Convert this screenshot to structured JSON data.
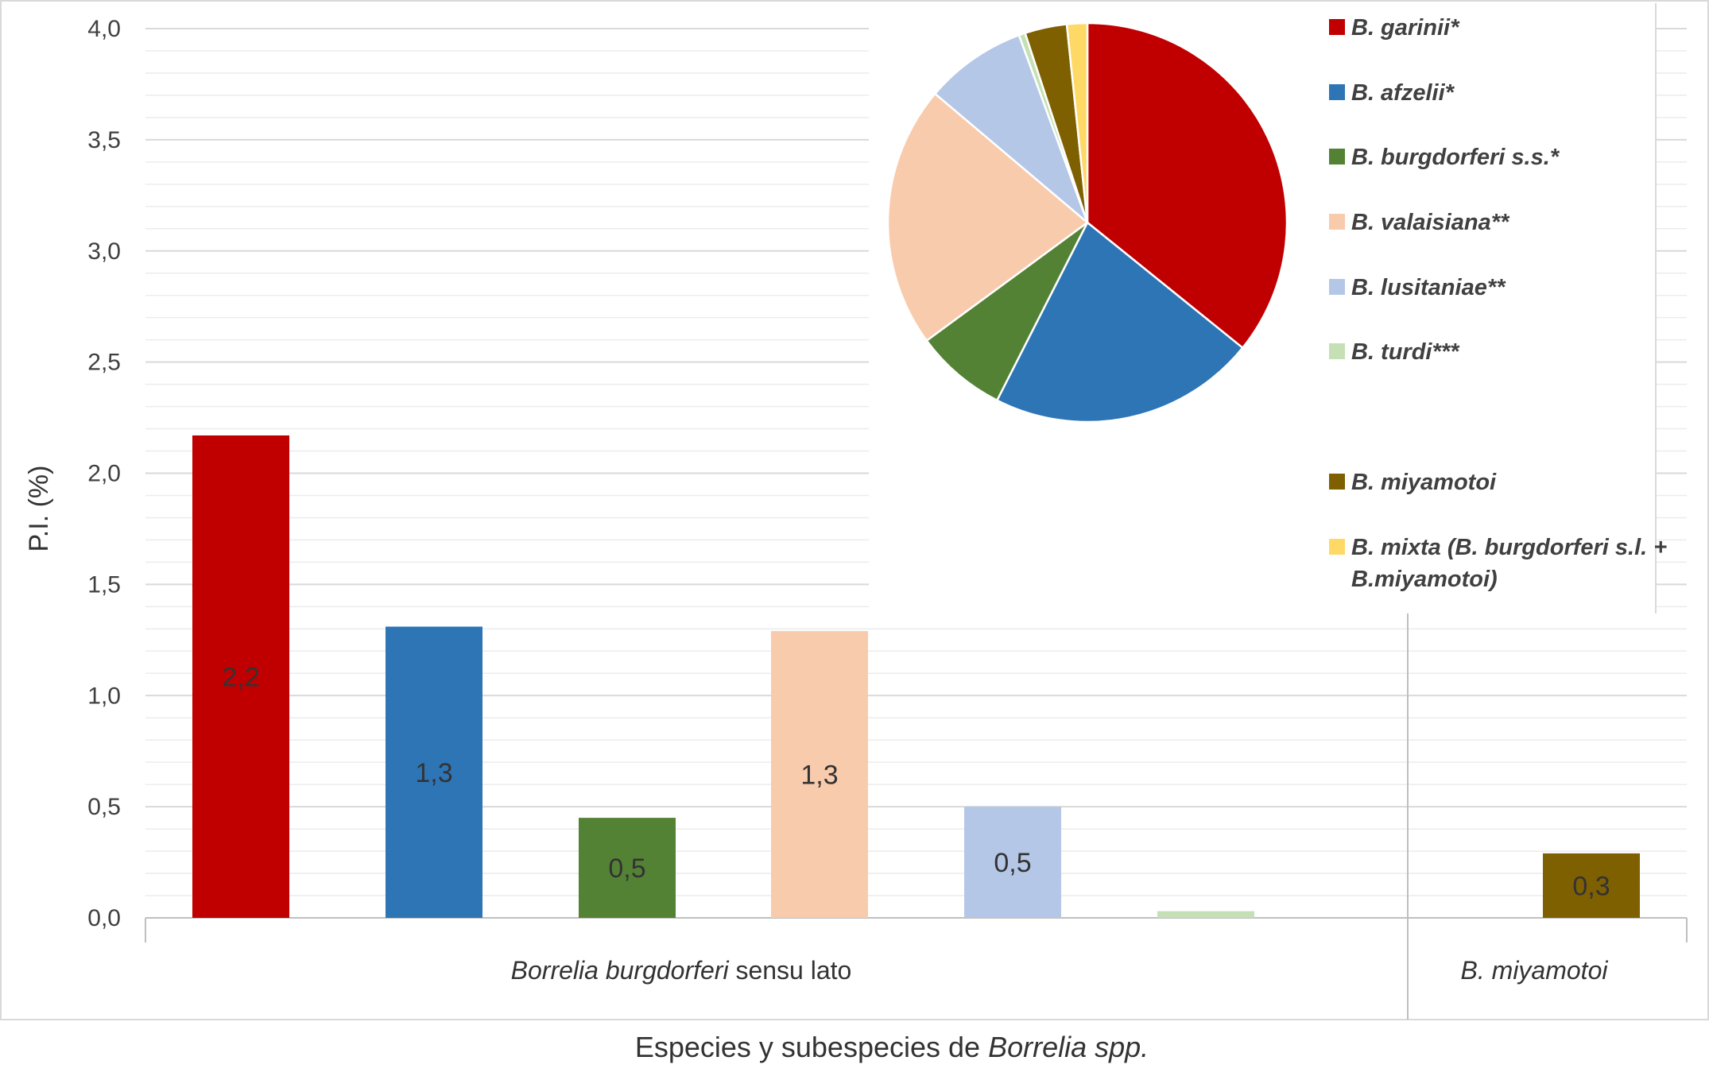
{
  "chart_data": [
    {
      "type": "bar",
      "ylabel": "P.I. (%)",
      "ylim": [
        0,
        4.0
      ],
      "ytick_step": 0.5,
      "yticks": [
        "0,0",
        "0,5",
        "1,0",
        "1,5",
        "2,0",
        "2,5",
        "3,0",
        "3,5",
        "4,0"
      ],
      "grid": true,
      "xlabel_parts": [
        "Especies y subespecies de ",
        "Borrelia spp."
      ],
      "groups": [
        {
          "label_italic": "Borrelia burgdorferi",
          "label_normal": " sensu lato"
        },
        {
          "label_italic": "B. miyamotoi",
          "label_normal": ""
        }
      ],
      "bars": [
        {
          "value": 2.17,
          "label": "2,2",
          "color": "#c00000",
          "group": 0
        },
        {
          "value": 1.31,
          "label": "1,3",
          "color": "#2e75b6",
          "group": 0
        },
        {
          "value": 0.45,
          "label": "0,5",
          "color": "#548235",
          "group": 0
        },
        {
          "value": 1.29,
          "label": "1,3",
          "color": "#f8cbad",
          "group": 0
        },
        {
          "value": 0.5,
          "label": "0,5",
          "color": "#b4c7e7",
          "group": 0
        },
        {
          "value": 0.03,
          "label": "",
          "color": "#c5e0b4",
          "group": 0
        },
        {
          "value": 0.29,
          "label": "0,3",
          "color": "#7f6000",
          "group": 1
        }
      ]
    },
    {
      "type": "pie",
      "slices": [
        {
          "name": "B. garinii*",
          "value": 34.7,
          "color": "#c00000"
        },
        {
          "name": "B. afzelii*",
          "value": 21.0,
          "color": "#2e75b6"
        },
        {
          "name": "B. burgdorferi s.s.*",
          "value": 7.2,
          "color": "#548235"
        },
        {
          "name": "B. valaisiana**",
          "value": 20.6,
          "color": "#f8cbad"
        },
        {
          "name": "B. lusitaniae**",
          "value": 8.0,
          "color": "#b4c7e7"
        },
        {
          "name": "B. turdi***",
          "value": 0.5,
          "color": "#c5e0b4"
        },
        {
          "name": "B. miyamotoi",
          "value": 3.3,
          "color": "#7f6000"
        },
        {
          "name": "B. mixta (B. burgdorferi s.l. + B.miyamotoi)",
          "value": 1.6,
          "color": "#ffd966"
        }
      ],
      "legend": [
        {
          "lines": [
            "B. garinii*"
          ],
          "color": "#c00000"
        },
        {
          "lines": [
            "B. afzelii*"
          ],
          "color": "#2e75b6"
        },
        {
          "lines": [
            "B. burgdorferi s.s.*"
          ],
          "color": "#548235"
        },
        {
          "lines": [
            "B. valaisiana**"
          ],
          "color": "#f8cbad"
        },
        {
          "lines": [
            "B. lusitaniae**"
          ],
          "color": "#b4c7e7"
        },
        {
          "lines": [
            "B. turdi***"
          ],
          "color": "#c5e0b4"
        },
        {
          "lines": [
            "B. miyamotoi"
          ],
          "color": "#7f6000"
        },
        {
          "lines": [
            "B. mixta (B. burgdorferi s.l. +",
            "B.miyamotoi)"
          ],
          "color": "#ffd966"
        }
      ],
      "legend_position": "right"
    }
  ]
}
